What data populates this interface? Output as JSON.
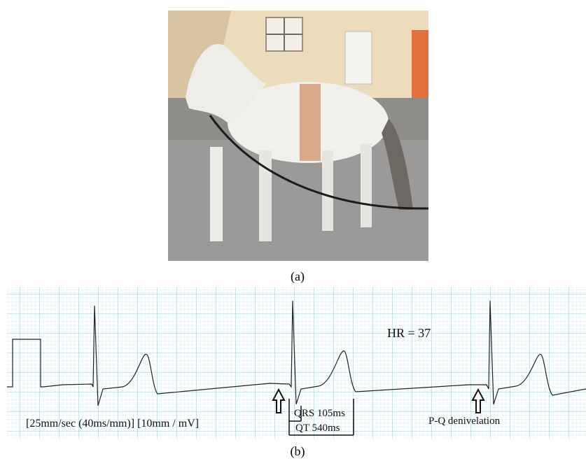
{
  "figure": {
    "panel_a": {
      "label": "(a)"
    },
    "panel_b": {
      "label": "(b)",
      "annotations": {
        "hr": "HR = 37",
        "qrs": "QRS 105ms",
        "qt": "QT 540ms",
        "scale": "[25mm/sec (40ms/mm)] [10mm / mV]",
        "pq": "P-Q denivelation"
      }
    }
  }
}
